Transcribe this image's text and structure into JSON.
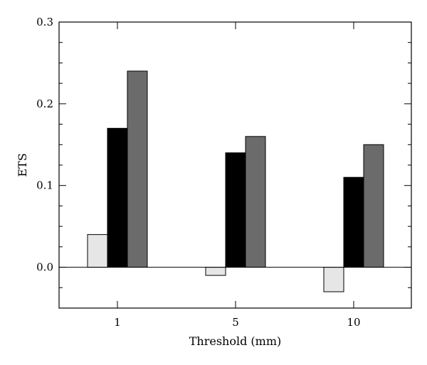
{
  "chart_data": {
    "type": "bar",
    "title": "",
    "xlabel": "Threshold (mm)",
    "ylabel": "ETS",
    "categories": [
      "1",
      "5",
      "10"
    ],
    "ylim": [
      -0.05,
      0.3
    ],
    "yticks": [
      0.0,
      0.1,
      0.2,
      0.3
    ],
    "ytick_labels": [
      "0.0",
      "0.1",
      "0.2",
      "0.3"
    ],
    "grid": false,
    "legend": "none",
    "series": [
      {
        "values": [
          0.04,
          -0.01,
          -0.03
        ],
        "color": "#e6e6e6"
      },
      {
        "values": [
          0.17,
          0.14,
          0.11
        ],
        "color": "#000000"
      },
      {
        "values": [
          0.24,
          0.16,
          0.15
        ],
        "color": "#6b6b6b"
      }
    ]
  }
}
